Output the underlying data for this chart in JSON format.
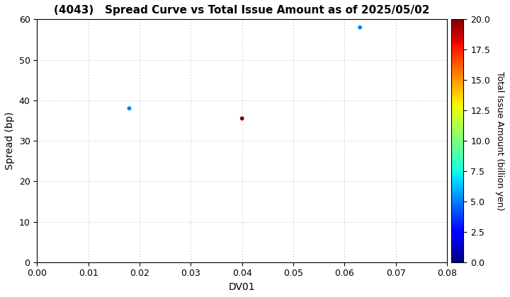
{
  "title": "(4043)   Spread Curve vs Total Issue Amount as of 2025/05/02",
  "points": [
    {
      "dv01": 0.018,
      "spread": 38.0,
      "amount": 5.0
    },
    {
      "dv01": 0.04,
      "spread": 35.5,
      "amount": 20.0
    },
    {
      "dv01": 0.063,
      "spread": 58.0,
      "amount": 5.0
    }
  ],
  "xlabel": "DV01",
  "ylabel": "Spread (bp)",
  "colorbar_label": "Total Issue Amount (billion yen)",
  "xlim": [
    0.0,
    0.08
  ],
  "ylim": [
    0,
    60
  ],
  "xticks": [
    0.0,
    0.01,
    0.02,
    0.03,
    0.04,
    0.05,
    0.06,
    0.07,
    0.08
  ],
  "yticks": [
    0,
    10,
    20,
    30,
    40,
    50,
    60
  ],
  "color_min": 0.0,
  "color_max": 20.0,
  "marker_size": 18,
  "background_color": "#ffffff",
  "grid_color": "#aaaaaa",
  "title_fontsize": 11,
  "label_fontsize": 10,
  "tick_fontsize": 9,
  "cbar_tick_fontsize": 9
}
